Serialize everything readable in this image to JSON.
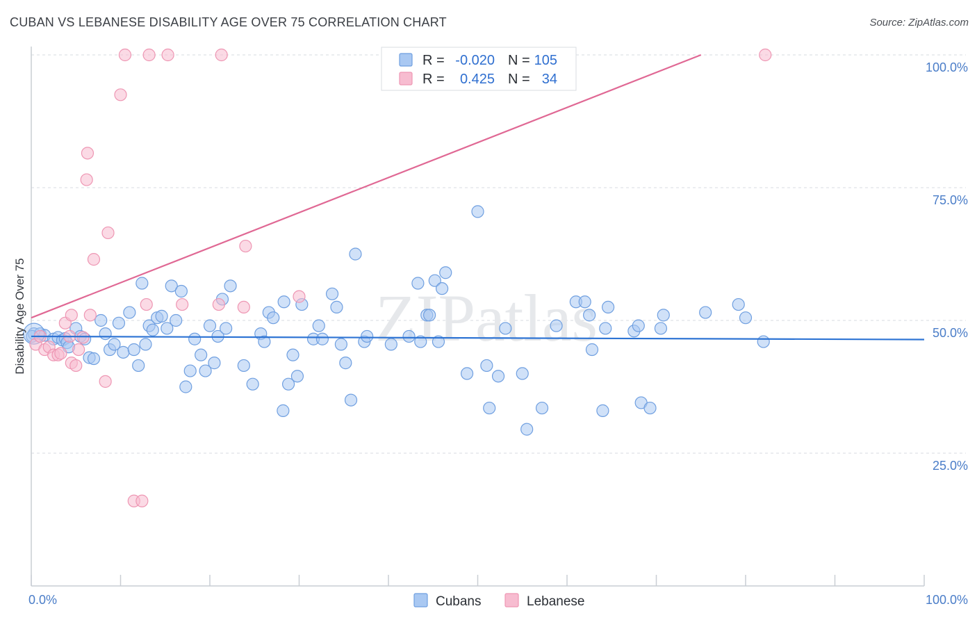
{
  "title": "CUBAN VS LEBANESE DISABILITY AGE OVER 75 CORRELATION CHART",
  "source": "Source: ZipAtlas.com",
  "colors": {
    "cubans_fill": "#a9c8f2",
    "cubans_stroke": "#6f9fe0",
    "cubans_line": "#2e74d4",
    "lebanese_fill": "#f7bcd0",
    "lebanese_stroke": "#ee96b3",
    "lebanese_line": "#e06894",
    "axis_text": "#4a7dc8",
    "grid": "#d7dbe0"
  },
  "legend": {
    "rows": [
      {
        "r_label": "R =",
        "r_value": "-0.020",
        "n_label": "N =",
        "n_value": "105",
        "series": "cubans"
      },
      {
        "r_label": "R =",
        "r_value": "0.425",
        "n_label": "N =",
        "n_value": "34",
        "series": "lebanese"
      }
    ]
  },
  "bottom_legend": [
    "Cubans",
    "Lebanese"
  ],
  "watermark": "ZIPatlas",
  "chart_data": {
    "type": "scatter",
    "title": "CUBAN VS LEBANESE DISABILITY AGE OVER 75 CORRELATION CHART",
    "xlabel": "",
    "ylabel": "Disability Age Over 75",
    "xlim": [
      0,
      100
    ],
    "ylim": [
      0,
      100
    ],
    "x_tick_labels": [
      "0.0%",
      "100.0%"
    ],
    "y_ticks": [
      25,
      50,
      75,
      100
    ],
    "y_tick_labels": [
      "25.0%",
      "50.0%",
      "75.0%",
      "100.0%"
    ],
    "grid": true,
    "series": [
      {
        "name": "Cubans",
        "trend": {
          "x0": 0,
          "y0": 47.0,
          "x1": 100,
          "y1": 46.4
        },
        "points": [
          [
            0.3,
            47.5
          ],
          [
            1.0,
            47.5
          ],
          [
            1.5,
            47.2
          ],
          [
            2.5,
            46.5
          ],
          [
            3.0,
            46.8
          ],
          [
            3.5,
            46.3
          ],
          [
            3.8,
            46.6
          ],
          [
            4.0,
            45.8
          ],
          [
            4.2,
            45.0
          ],
          [
            5.0,
            48.5
          ],
          [
            5.5,
            47.0
          ],
          [
            6.0,
            46.5
          ],
          [
            6.5,
            43.0
          ],
          [
            7.0,
            42.8
          ],
          [
            7.8,
            50.0
          ],
          [
            8.3,
            47.5
          ],
          [
            8.8,
            44.5
          ],
          [
            9.3,
            45.5
          ],
          [
            9.8,
            49.5
          ],
          [
            10.3,
            44.0
          ],
          [
            11.0,
            51.5
          ],
          [
            11.5,
            44.5
          ],
          [
            12.0,
            41.5
          ],
          [
            12.4,
            57.0
          ],
          [
            12.8,
            45.5
          ],
          [
            13.2,
            49.0
          ],
          [
            13.6,
            48.2
          ],
          [
            14.1,
            50.5
          ],
          [
            14.6,
            50.8
          ],
          [
            15.2,
            48.5
          ],
          [
            15.7,
            56.5
          ],
          [
            16.2,
            50.0
          ],
          [
            16.8,
            55.5
          ],
          [
            17.3,
            37.5
          ],
          [
            17.8,
            40.5
          ],
          [
            18.3,
            46.5
          ],
          [
            19.0,
            43.5
          ],
          [
            19.5,
            40.5
          ],
          [
            20.0,
            49.0
          ],
          [
            20.5,
            42.0
          ],
          [
            20.9,
            47.0
          ],
          [
            21.4,
            54.0
          ],
          [
            21.8,
            48.5
          ],
          [
            22.3,
            56.5
          ],
          [
            23.8,
            41.5
          ],
          [
            24.8,
            38.0
          ],
          [
            25.7,
            47.5
          ],
          [
            26.1,
            46.0
          ],
          [
            26.6,
            51.5
          ],
          [
            27.1,
            50.5
          ],
          [
            28.2,
            33.0
          ],
          [
            28.3,
            53.5
          ],
          [
            28.8,
            38.0
          ],
          [
            29.3,
            43.5
          ],
          [
            29.8,
            39.5
          ],
          [
            30.3,
            53.0
          ],
          [
            31.6,
            46.5
          ],
          [
            32.2,
            49.0
          ],
          [
            32.6,
            46.5
          ],
          [
            33.7,
            55.0
          ],
          [
            34.2,
            52.5
          ],
          [
            34.7,
            45.5
          ],
          [
            35.2,
            42.0
          ],
          [
            35.8,
            35.0
          ],
          [
            36.3,
            62.5
          ],
          [
            37.3,
            46.0
          ],
          [
            37.6,
            47.0
          ],
          [
            40.3,
            45.5
          ],
          [
            42.3,
            47.0
          ],
          [
            43.3,
            57.0
          ],
          [
            43.6,
            46.0
          ],
          [
            44.3,
            51.0
          ],
          [
            44.6,
            51.0
          ],
          [
            45.2,
            57.5
          ],
          [
            45.6,
            46.0
          ],
          [
            46.0,
            56.0
          ],
          [
            46.4,
            59.0
          ],
          [
            48.8,
            40.0
          ],
          [
            50.0,
            70.5
          ],
          [
            51.0,
            41.5
          ],
          [
            51.3,
            33.5
          ],
          [
            52.3,
            39.5
          ],
          [
            53.1,
            48.5
          ],
          [
            55.0,
            40.0
          ],
          [
            55.5,
            29.5
          ],
          [
            57.2,
            33.5
          ],
          [
            58.8,
            49.0
          ],
          [
            61.0,
            53.5
          ],
          [
            62.0,
            53.5
          ],
          [
            62.5,
            51.0
          ],
          [
            62.8,
            44.5
          ],
          [
            64.0,
            33.0
          ],
          [
            64.3,
            48.5
          ],
          [
            64.6,
            52.5
          ],
          [
            67.5,
            48.0
          ],
          [
            68.0,
            49.0
          ],
          [
            68.3,
            34.5
          ],
          [
            69.3,
            33.5
          ],
          [
            70.5,
            48.5
          ],
          [
            70.8,
            51.0
          ],
          [
            75.5,
            51.5
          ],
          [
            79.2,
            53.0
          ],
          [
            80.0,
            50.5
          ],
          [
            82.0,
            46.0
          ],
          [
            0.1,
            47.0
          ]
        ]
      },
      {
        "name": "Lebanese",
        "trend": {
          "x0": 0,
          "y0": 50.5,
          "x1": 75,
          "y1": 100
        },
        "points": [
          [
            0.5,
            45.5
          ],
          [
            1.0,
            47.0
          ],
          [
            1.5,
            44.5
          ],
          [
            2.0,
            45.0
          ],
          [
            2.5,
            43.5
          ],
          [
            3.0,
            43.5
          ],
          [
            3.3,
            43.8
          ],
          [
            3.8,
            49.5
          ],
          [
            4.3,
            47.0
          ],
          [
            4.5,
            42.0
          ],
          [
            4.5,
            51.0
          ],
          [
            5.0,
            41.5
          ],
          [
            5.3,
            44.5
          ],
          [
            5.8,
            46.8
          ],
          [
            6.2,
            76.5
          ],
          [
            6.3,
            81.5
          ],
          [
            6.6,
            51.0
          ],
          [
            7.0,
            61.5
          ],
          [
            8.3,
            38.5
          ],
          [
            8.6,
            66.5
          ],
          [
            10.0,
            92.5
          ],
          [
            10.5,
            100.0
          ],
          [
            11.5,
            16.0
          ],
          [
            12.4,
            16.0
          ],
          [
            12.9,
            53.0
          ],
          [
            13.2,
            100.0
          ],
          [
            15.3,
            100.0
          ],
          [
            16.9,
            53.0
          ],
          [
            21.0,
            53.0
          ],
          [
            21.3,
            100.0
          ],
          [
            23.8,
            52.5
          ],
          [
            24.0,
            64.0
          ],
          [
            30.0,
            54.5
          ],
          [
            82.2,
            100.0
          ]
        ]
      }
    ]
  }
}
